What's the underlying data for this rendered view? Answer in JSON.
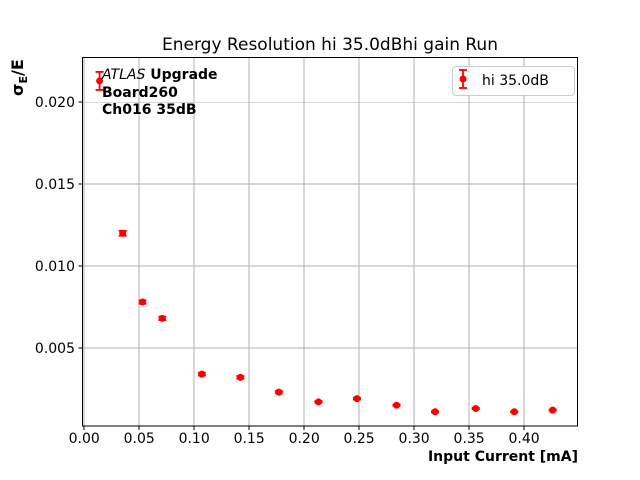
{
  "chart_data": {
    "type": "scatter",
    "title": "Energy Resolution hi 35.0dBhi gain Run",
    "xlabel": "Input Current [mA]",
    "ylabel": "σE/E",
    "ylabel_parts": {
      "main": "σ",
      "sub": "E",
      "rest": "/E"
    },
    "series": [
      {
        "name": "hi 35.0dB",
        "color": "#ff0000",
        "x": [
          0.014,
          0.035,
          0.053,
          0.071,
          0.107,
          0.142,
          0.177,
          0.213,
          0.248,
          0.284,
          0.319,
          0.356,
          0.391,
          0.426
        ],
        "y": [
          0.0213,
          0.012,
          0.0078,
          0.0068,
          0.0034,
          0.0032,
          0.0023,
          0.0017,
          0.0019,
          0.0015,
          0.0011,
          0.0013,
          0.0011,
          0.0012
        ],
        "yerr": [
          0.00055,
          0.00015,
          0.0001,
          0.0001,
          8e-05,
          8e-05,
          6e-05,
          5e-05,
          5e-05,
          4e-05,
          4e-05,
          4e-05,
          3e-05,
          3e-05
        ]
      }
    ],
    "xlim": [
      -0.002,
      0.449
    ],
    "ylim": [
      0.0002,
      0.0227
    ],
    "xticks": [
      0.0,
      0.05,
      0.1,
      0.15,
      0.2,
      0.25,
      0.3,
      0.35,
      0.4
    ],
    "xtick_labels": [
      "0.00",
      "0.05",
      "0.10",
      "0.15",
      "0.20",
      "0.25",
      "0.30",
      "0.35",
      "0.40"
    ],
    "yticks": [
      0.005,
      0.01,
      0.015,
      0.02
    ],
    "ytick_labels": [
      "0.005",
      "0.010",
      "0.015",
      "0.020"
    ],
    "grid": true,
    "grid_color": "#b0b0b0",
    "spine_color": "#000000",
    "legend": {
      "position": "upper right",
      "label": "hi 35.0dB"
    },
    "annotation": {
      "line1_italic": "ATLAS",
      "line1_bold": "Upgrade",
      "line2": "Board260",
      "line3": "Ch016 35dB"
    }
  }
}
